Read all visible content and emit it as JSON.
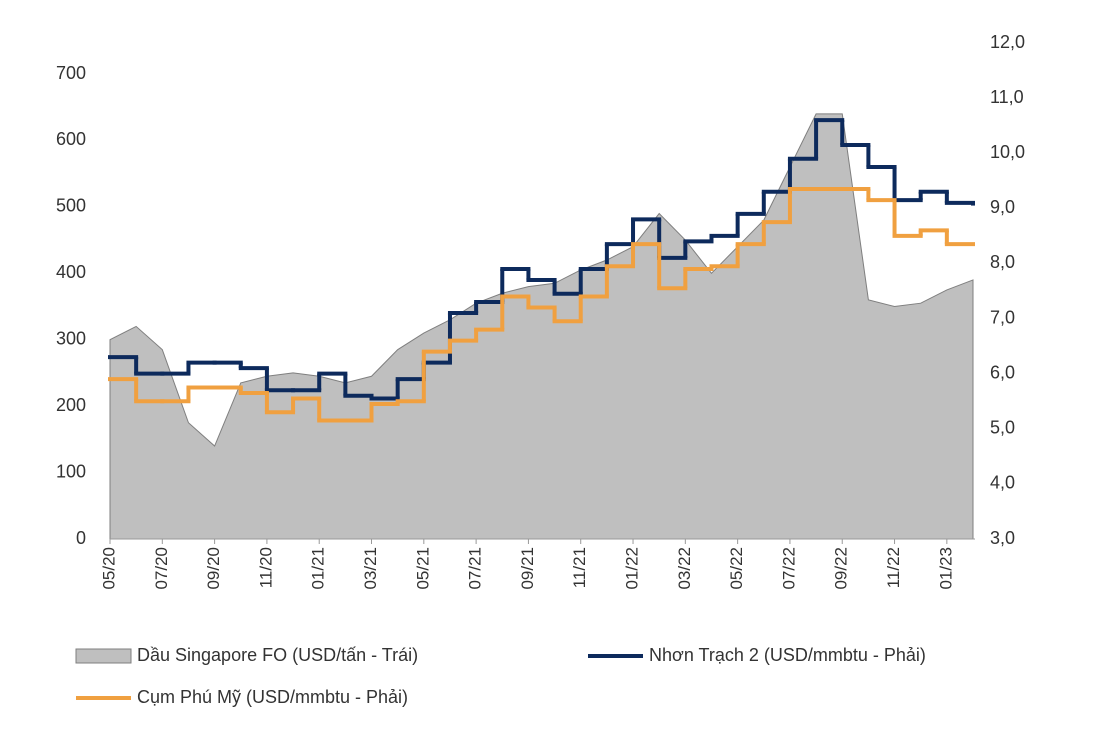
{
  "chart_data": {
    "type": "line",
    "categories": [
      "05/20",
      null,
      "07/20",
      null,
      "09/20",
      null,
      "11/20",
      null,
      "01/21",
      null,
      "03/21",
      null,
      "05/21",
      null,
      "07/21",
      null,
      "09/21",
      null,
      "11/21",
      null,
      "01/22",
      null,
      "03/22",
      null,
      "05/22",
      null,
      "07/22",
      null,
      "09/22",
      null,
      "11/22",
      null,
      "01/23",
      null
    ],
    "series": [
      {
        "name": "Dầu Singapore FO (USD/tấn - Trái)",
        "type": "area",
        "color": "#bfbfbf",
        "values": [
          300,
          320,
          285,
          175,
          140,
          235,
          245,
          250,
          245,
          235,
          245,
          285,
          310,
          330,
          355,
          370,
          380,
          385,
          405,
          420,
          440,
          490,
          450,
          400,
          440,
          480,
          560,
          640,
          640,
          360,
          350,
          355,
          375,
          390
        ]
      },
      {
        "name": "Nhơn Trạch 2 (USD/mmbtu - Phải)",
        "type": "step",
        "axis": "y2",
        "color": "#0d2a5c",
        "values": [
          6.3,
          6.0,
          6.0,
          6.2,
          6.2,
          6.1,
          5.7,
          5.7,
          6.0,
          5.6,
          5.55,
          5.9,
          6.2,
          7.1,
          7.3,
          7.9,
          7.7,
          7.45,
          7.9,
          8.35,
          8.8,
          8.1,
          8.4,
          8.5,
          8.9,
          9.3,
          9.9,
          10.6,
          10.15,
          9.75,
          9.15,
          9.3,
          9.1,
          9.05
        ]
      },
      {
        "name": "Cụm Phú Mỹ (USD/mmbtu - Phải)",
        "type": "step",
        "axis": "y2",
        "color": "#f0a040",
        "values": [
          5.9,
          5.5,
          5.5,
          5.75,
          5.75,
          5.65,
          5.3,
          5.55,
          5.15,
          5.15,
          5.45,
          5.5,
          6.4,
          6.6,
          6.8,
          7.4,
          7.2,
          6.95,
          7.4,
          7.95,
          8.35,
          7.55,
          7.9,
          7.95,
          8.35,
          8.75,
          9.35,
          9.35,
          9.35,
          9.15,
          8.5,
          8.6,
          8.35,
          8.35
        ]
      }
    ],
    "ylim": [
      0,
      746.7
    ],
    "yticks": [
      0,
      100,
      200,
      300,
      400,
      500,
      600,
      700
    ],
    "y2lim": [
      3,
      12
    ],
    "y2ticks": [
      {
        "value": 3,
        "label": "3,0"
      },
      {
        "value": 4,
        "label": "4,0"
      },
      {
        "value": 5,
        "label": "5,0"
      },
      {
        "value": 6,
        "label": "6,0"
      },
      {
        "value": 7,
        "label": "7,0"
      },
      {
        "value": 8,
        "label": "8,0"
      },
      {
        "value": 9,
        "label": "9,0"
      },
      {
        "value": 10,
        "label": "10,0"
      },
      {
        "value": 11,
        "label": "11,0"
      },
      {
        "value": 12,
        "label": "12,0"
      }
    ],
    "grid": false,
    "legend": "bottom"
  }
}
